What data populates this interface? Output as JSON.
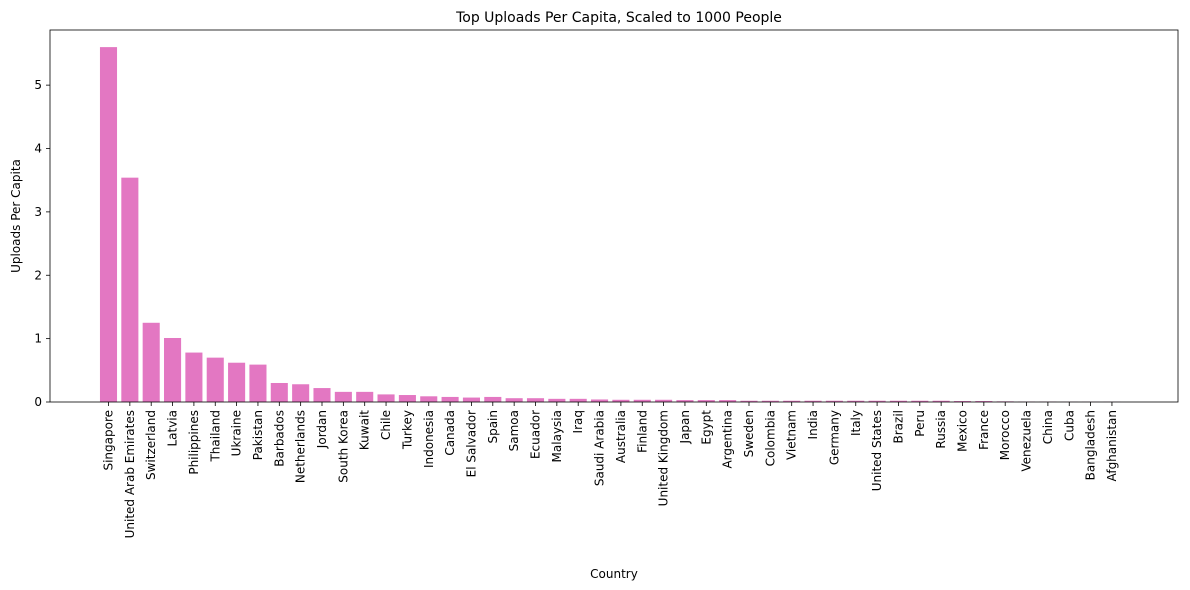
{
  "chart_data": {
    "type": "bar",
    "title": "Top Uploads Per Capita, Scaled to 1000 People",
    "xlabel": "Country",
    "ylabel": "Uploads Per Capita",
    "ylim": [
      0,
      5.87
    ],
    "yticks": [
      0,
      1,
      2,
      3,
      4,
      5
    ],
    "ytick_labels": [
      "0",
      "1",
      "2",
      "3",
      "4",
      "5"
    ],
    "grid": false,
    "legend": "none",
    "bar_color": "#e377c2",
    "categories": [
      "Singapore",
      "United Arab Emirates",
      "Switzerland",
      "Latvia",
      "Philippines",
      "Thailand",
      "Ukraine",
      "Pakistan",
      "Barbados",
      "Netherlands",
      "Jordan",
      "South Korea",
      "Kuwait",
      "Chile",
      "Turkey",
      "Indonesia",
      "Canada",
      "El Salvador",
      "Spain",
      "Samoa",
      "Ecuador",
      "Malaysia",
      "Iraq",
      "Saudi Arabia",
      "Australia",
      "Finland",
      "United Kingdom",
      "Japan",
      "Egypt",
      "Argentina",
      "Sweden",
      "Colombia",
      "Vietnam",
      "India",
      "Germany",
      "Italy",
      "United States",
      "Brazil",
      "Peru",
      "Russia",
      "Mexico",
      "France",
      "Morocco",
      "Venezuela",
      "China",
      "Cuba",
      "Bangladesh",
      "Afghanistan"
    ],
    "values": [
      5.6,
      3.54,
      1.25,
      1.01,
      0.78,
      0.7,
      0.62,
      0.59,
      0.3,
      0.28,
      0.22,
      0.16,
      0.16,
      0.12,
      0.11,
      0.09,
      0.08,
      0.07,
      0.08,
      0.06,
      0.06,
      0.05,
      0.05,
      0.04,
      0.035,
      0.035,
      0.035,
      0.03,
      0.03,
      0.03,
      0.02,
      0.02,
      0.02,
      0.02,
      0.02,
      0.02,
      0.02,
      0.02,
      0.02,
      0.02,
      0.015,
      0.015,
      0.01,
      0.005,
      0.005,
      0.003,
      0.003,
      0.003
    ]
  }
}
